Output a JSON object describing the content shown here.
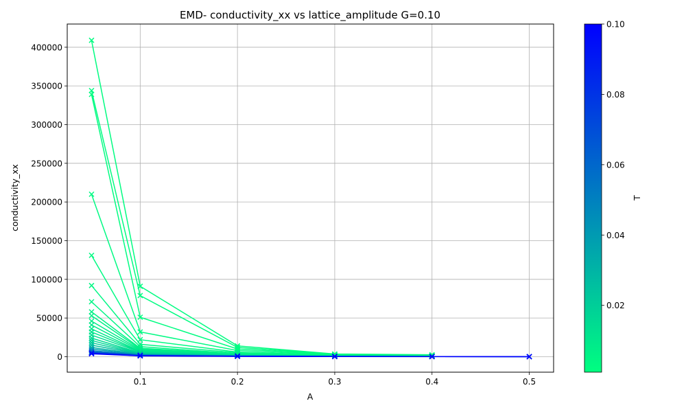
{
  "chart_data": {
    "type": "line",
    "title": "EMD- conductivity_xx vs lattice_amplitude G=0.10",
    "xlabel": "A",
    "ylabel": "conductivity_xx",
    "xlim": [
      0.025,
      0.525
    ],
    "ylim": [
      -20000,
      430000
    ],
    "x_ticks": [
      0.1,
      0.2,
      0.3,
      0.4,
      0.5
    ],
    "x_tick_labels": [
      "0.1",
      "0.2",
      "0.3",
      "0.4",
      "0.5"
    ],
    "y_ticks": [
      0,
      50000,
      100000,
      150000,
      200000,
      250000,
      300000,
      350000,
      400000
    ],
    "y_tick_labels": [
      "0",
      "50000",
      "100000",
      "150000",
      "200000",
      "250000",
      "300000",
      "350000",
      "400000"
    ],
    "grid": true,
    "marker": "x",
    "colormap": "winter_r",
    "colorbar": {
      "label": "T",
      "min": 0.001,
      "max": 0.1,
      "ticks": [
        0.02,
        0.04,
        0.06,
        0.08,
        0.1
      ],
      "tick_labels": [
        "0.02",
        "0.04",
        "0.06",
        "0.08",
        "0.10"
      ],
      "low_color": "#00ff80",
      "high_color": "#0000ff"
    },
    "series": [
      {
        "T": 0.002,
        "x": [
          0.05,
          0.1,
          0.2,
          0.3,
          0.4
        ],
        "y": [
          409000,
          91000,
          14000,
          3500,
          2500
        ]
      },
      {
        "T": 0.002,
        "x": [
          0.05,
          0.1,
          0.2,
          0.3,
          0.4
        ],
        "y": [
          344000,
          79000,
          12000,
          3200,
          2200
        ]
      },
      {
        "T": 0.002,
        "x": [
          0.05,
          0.1,
          0.2,
          0.3,
          0.4
        ],
        "y": [
          339000,
          51000,
          10000,
          3000,
          2000
        ]
      },
      {
        "T": 0.003,
        "x": [
          0.05,
          0.1,
          0.2,
          0.3,
          0.4
        ],
        "y": [
          210000,
          32000,
          8000,
          2500,
          1800
        ]
      },
      {
        "T": 0.003,
        "x": [
          0.05,
          0.1,
          0.2,
          0.3,
          0.4
        ],
        "y": [
          131000,
          22000,
          6000,
          2000,
          1500
        ]
      },
      {
        "T": 0.004,
        "x": [
          0.05,
          0.1,
          0.2,
          0.3,
          0.4
        ],
        "y": [
          92000,
          16000,
          5000,
          1700,
          1200
        ]
      },
      {
        "T": 0.005,
        "x": [
          0.05,
          0.1,
          0.2,
          0.3,
          0.4
        ],
        "y": [
          71000,
          13000,
          4000,
          1500,
          1000
        ]
      },
      {
        "T": 0.006,
        "x": [
          0.05,
          0.1,
          0.2,
          0.3,
          0.4
        ],
        "y": [
          58000,
          11000,
          3500,
          1300,
          900
        ]
      },
      {
        "T": 0.007,
        "x": [
          0.05,
          0.1,
          0.2,
          0.3,
          0.4
        ],
        "y": [
          53000,
          10000,
          3200,
          1200,
          800
        ]
      },
      {
        "T": 0.008,
        "x": [
          0.05,
          0.1,
          0.2,
          0.3,
          0.4
        ],
        "y": [
          46000,
          9000,
          3000,
          1100,
          700
        ]
      },
      {
        "T": 0.009,
        "x": [
          0.05,
          0.1,
          0.2,
          0.3,
          0.4
        ],
        "y": [
          41000,
          8000,
          2700,
          1000,
          650
        ]
      },
      {
        "T": 0.01,
        "x": [
          0.05,
          0.1,
          0.2,
          0.3,
          0.4
        ],
        "y": [
          36000,
          7000,
          2400,
          900,
          600
        ]
      },
      {
        "T": 0.011,
        "x": [
          0.05,
          0.1,
          0.2,
          0.3,
          0.4
        ],
        "y": [
          32000,
          6500,
          2200,
          800,
          550
        ]
      },
      {
        "T": 0.013,
        "x": [
          0.05,
          0.1,
          0.2,
          0.3,
          0.4
        ],
        "y": [
          28000,
          6000,
          2000,
          750,
          500
        ]
      },
      {
        "T": 0.015,
        "x": [
          0.05,
          0.1,
          0.2,
          0.3,
          0.4
        ],
        "y": [
          24000,
          5000,
          1800,
          700,
          450
        ]
      },
      {
        "T": 0.017,
        "x": [
          0.05,
          0.1,
          0.2,
          0.3,
          0.4
        ],
        "y": [
          21000,
          4500,
          1600,
          600,
          400
        ]
      },
      {
        "T": 0.02,
        "x": [
          0.05,
          0.1,
          0.2,
          0.3,
          0.4
        ],
        "y": [
          18000,
          4000,
          1400,
          550,
          350
        ]
      },
      {
        "T": 0.025,
        "x": [
          0.05,
          0.1,
          0.2,
          0.3,
          0.4
        ],
        "y": [
          15000,
          3500,
          1200,
          500,
          300
        ]
      },
      {
        "T": 0.03,
        "x": [
          0.05,
          0.1,
          0.2,
          0.3,
          0.4,
          0.5
        ],
        "y": [
          12000,
          3000,
          1000,
          450,
          250,
          150
        ]
      },
      {
        "T": 0.04,
        "x": [
          0.05,
          0.1,
          0.2,
          0.3,
          0.4,
          0.5
        ],
        "y": [
          10000,
          2500,
          900,
          400,
          220,
          120
        ]
      },
      {
        "T": 0.05,
        "x": [
          0.05,
          0.1,
          0.2,
          0.3,
          0.4,
          0.5
        ],
        "y": [
          8000,
          2000,
          800,
          350,
          200,
          100
        ]
      },
      {
        "T": 0.06,
        "x": [
          0.05,
          0.1,
          0.2,
          0.3,
          0.4,
          0.5
        ],
        "y": [
          6500,
          1800,
          700,
          300,
          180,
          90
        ]
      },
      {
        "T": 0.07,
        "x": [
          0.05,
          0.1,
          0.2,
          0.3,
          0.4,
          0.5
        ],
        "y": [
          5500,
          1600,
          600,
          280,
          160,
          80
        ]
      },
      {
        "T": 0.08,
        "x": [
          0.05,
          0.1,
          0.2,
          0.3,
          0.4,
          0.5
        ],
        "y": [
          4800,
          1400,
          550,
          250,
          140,
          70
        ]
      },
      {
        "T": 0.09,
        "x": [
          0.05,
          0.1,
          0.2,
          0.3,
          0.4,
          0.5
        ],
        "y": [
          4200,
          1200,
          500,
          220,
          120,
          60
        ]
      },
      {
        "T": 0.1,
        "x": [
          0.05,
          0.1,
          0.2,
          0.3,
          0.4,
          0.5
        ],
        "y": [
          3800,
          1000,
          450,
          200,
          100,
          50
        ]
      }
    ]
  }
}
